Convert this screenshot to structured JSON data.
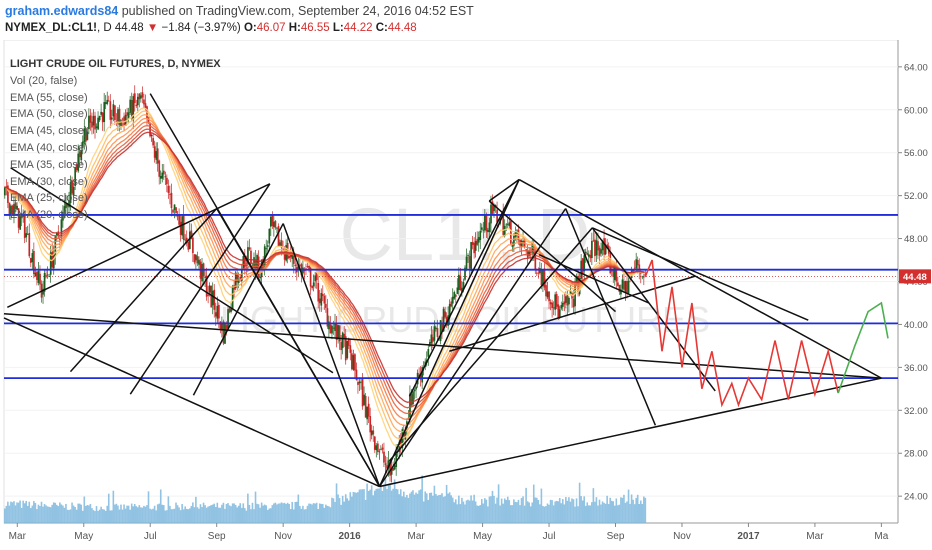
{
  "header": {
    "author": "graham.edwards84",
    "published_text": " published on TradingView.com, September 24, 2016 04:52 EST",
    "symbol": "NYMEX_DL:CL1!",
    "interval": ", D ",
    "last": "44.48",
    "change_arrow": "▼",
    "change": "−1.84 (−3.97%)",
    "open_label": "O:",
    "open": "46.07",
    "high_label": "H:",
    "high": "46.55",
    "low_label": "L:",
    "low": "44.22",
    "close_label": "C:",
    "close": "44.48"
  },
  "indicators": {
    "title": "LIGHT CRUDE OIL FUTURES, D, NYMEX",
    "items": [
      "Vol (20, false)",
      "EMA (55, close)",
      "EMA (50, close)",
      "EMA (45, close)",
      "EMA (40, close)",
      "EMA (35, close)",
      "EMA (30, close)",
      "EMA (25, close)",
      "EMA (20, close)"
    ]
  },
  "watermark": {
    "symbol": "CL1!, D",
    "name": "LIGHT CRUDE OIL FUTURES"
  },
  "price_tag": {
    "value": "44.48",
    "color": "#d32f2f"
  },
  "colors": {
    "hline": "#1f2ddb",
    "trendline": "#111111",
    "projection_red": "#e53935",
    "projection_green": "#4caf50",
    "candle_up": "#1b5e20",
    "candle_down": "#c62828",
    "volume": "#7fb8dd",
    "ema_hot": "#c62828",
    "ema_cool": "#ffcc66"
  },
  "chart_data": {
    "type": "candlestick",
    "title": "LIGHT CRUDE OIL FUTURES, D, NYMEX",
    "y_axis": {
      "ticks": [
        24.0,
        28.0,
        32.0,
        36.0,
        40.0,
        44.0,
        48.0,
        52.0,
        56.0,
        60.0,
        64.0
      ],
      "tick_labels": [
        "24.00",
        "28.00",
        "32.00",
        "36.00",
        "40.00",
        "44.00",
        "48.00",
        "52.00",
        "56.00",
        "60.00",
        "64.00"
      ],
      "range": [
        21.5,
        66.5
      ]
    },
    "x_axis": {
      "labels": [
        "Mar",
        "May",
        "Jul",
        "Sep",
        "Nov",
        "2016",
        "Mar",
        "May",
        "Jul",
        "Sep",
        "Nov",
        "2017",
        "Mar",
        "Ma"
      ],
      "label_months": [
        0,
        2,
        4,
        6,
        8,
        10,
        12,
        14,
        16,
        18,
        20,
        22,
        24,
        26
      ],
      "range_months": [
        -0.4,
        26.5
      ]
    },
    "price_path": [
      [
        -0.4,
        52.0
      ],
      [
        0.2,
        49.0
      ],
      [
        0.7,
        43.0
      ],
      [
        1.1,
        47.0
      ],
      [
        1.6,
        53.0
      ],
      [
        2.0,
        58.0
      ],
      [
        2.6,
        60.0
      ],
      [
        3.1,
        59.0
      ],
      [
        3.7,
        61.0
      ],
      [
        4.0,
        57.0
      ],
      [
        4.3,
        54.0
      ],
      [
        4.8,
        50.0
      ],
      [
        5.2,
        47.5
      ],
      [
        5.6,
        44.0
      ],
      [
        6.0,
        41.0
      ],
      [
        6.2,
        39.0
      ],
      [
        6.5,
        44.0
      ],
      [
        6.9,
        46.5
      ],
      [
        7.3,
        45.0
      ],
      [
        7.6,
        49.0
      ],
      [
        8.0,
        47.0
      ],
      [
        8.4,
        45.5
      ],
      [
        8.9,
        44.0
      ],
      [
        9.4,
        40.0
      ],
      [
        10.0,
        37.0
      ],
      [
        10.3,
        34.0
      ],
      [
        10.6,
        30.5
      ],
      [
        10.9,
        28.0
      ],
      [
        11.2,
        26.0
      ],
      [
        11.5,
        29.0
      ],
      [
        11.9,
        34.0
      ],
      [
        12.4,
        38.0
      ],
      [
        12.9,
        41.0
      ],
      [
        13.3,
        44.0
      ],
      [
        13.8,
        48.0
      ],
      [
        14.3,
        50.5
      ],
      [
        14.7,
        49.0
      ],
      [
        15.1,
        47.5
      ],
      [
        15.5,
        46.5
      ],
      [
        15.9,
        43.5
      ],
      [
        16.3,
        41.0
      ],
      [
        16.7,
        42.5
      ],
      [
        17.1,
        46.5
      ],
      [
        17.5,
        47.5
      ],
      [
        17.9,
        45.0
      ],
      [
        18.2,
        43.0
      ],
      [
        18.6,
        45.5
      ],
      [
        18.9,
        44.48
      ]
    ],
    "horizontal_levels": [
      50.2,
      45.1,
      40.1,
      35.0
    ],
    "ema_periods": [
      20,
      25,
      30,
      35,
      40,
      45,
      50,
      55
    ],
    "trendlines": [
      [
        [
          -0.4,
          40.6
        ],
        [
          10.9,
          24.9
        ]
      ],
      [
        [
          -0.4,
          41.0
        ],
        [
          26.0,
          35.0
        ]
      ],
      [
        [
          10.9,
          24.9
        ],
        [
          26.0,
          35.0
        ]
      ],
      [
        [
          -0.2,
          54.6
        ],
        [
          9.5,
          35.5
        ]
      ],
      [
        [
          -0.3,
          41.6
        ],
        [
          7.6,
          53.1
        ]
      ],
      [
        [
          1.6,
          35.6
        ],
        [
          6.0,
          50.8
        ]
      ],
      [
        [
          3.4,
          33.5
        ],
        [
          7.6,
          53.1
        ]
      ],
      [
        [
          4.0,
          61.5
        ],
        [
          10.9,
          24.9
        ]
      ],
      [
        [
          6.0,
          50.8
        ],
        [
          10.9,
          24.9
        ]
      ],
      [
        [
          5.3,
          33.4
        ],
        [
          8.0,
          49.4
        ]
      ],
      [
        [
          8.0,
          49.4
        ],
        [
          10.9,
          24.9
        ]
      ],
      [
        [
          10.9,
          24.9
        ],
        [
          15.1,
          53.5
        ]
      ],
      [
        [
          10.9,
          24.9
        ],
        [
          16.5,
          50.8
        ]
      ],
      [
        [
          15.1,
          53.5
        ],
        [
          26.0,
          35.0
        ]
      ],
      [
        [
          14.2,
          51.5
        ],
        [
          15.1,
          53.5
        ]
      ],
      [
        [
          16.5,
          50.8
        ],
        [
          19.2,
          30.6
        ]
      ],
      [
        [
          11.8,
          33.3
        ],
        [
          15.1,
          53.5
        ]
      ],
      [
        [
          14.2,
          51.5
        ],
        [
          18.0,
          41.2
        ]
      ],
      [
        [
          11.2,
          27.3
        ],
        [
          17.3,
          49.0
        ]
      ],
      [
        [
          17.3,
          49.0
        ],
        [
          23.8,
          40.4
        ]
      ],
      [
        [
          15.7,
          46.5
        ],
        [
          19.0,
          42.0
        ]
      ],
      [
        [
          17.3,
          49.0
        ],
        [
          21.0,
          33.8
        ]
      ],
      [
        [
          13.0,
          37.5
        ],
        [
          20.4,
          44.5
        ]
      ]
    ],
    "projection_red": [
      [
        18.9,
        44.48
      ],
      [
        19.1,
        46.0
      ],
      [
        19.4,
        37.5
      ],
      [
        19.7,
        43.5
      ],
      [
        20.0,
        36.0
      ],
      [
        20.3,
        42.0
      ],
      [
        20.6,
        34.0
      ],
      [
        20.9,
        37.5
      ],
      [
        21.2,
        32.5
      ],
      [
        21.5,
        34.5
      ],
      [
        21.7,
        32.5
      ],
      [
        22.0,
        35.0
      ],
      [
        22.4,
        33.0
      ],
      [
        22.8,
        38.5
      ],
      [
        23.2,
        33.0
      ],
      [
        23.6,
        38.5
      ],
      [
        24.0,
        33.5
      ],
      [
        24.4,
        37.5
      ],
      [
        24.7,
        33.6
      ]
    ],
    "projection_green": [
      [
        24.7,
        33.6
      ],
      [
        25.2,
        38.0
      ],
      [
        25.6,
        41.2
      ],
      [
        26.0,
        42.0
      ],
      [
        26.2,
        38.7
      ]
    ],
    "volume_profile": [
      [
        -0.4,
        0.35
      ],
      [
        1.5,
        0.3
      ],
      [
        3.0,
        0.28
      ],
      [
        5.0,
        0.3
      ],
      [
        7.0,
        0.3
      ],
      [
        9.0,
        0.32
      ],
      [
        10.5,
        0.55
      ],
      [
        11.2,
        0.7
      ],
      [
        12.0,
        0.5
      ],
      [
        14.0,
        0.4
      ],
      [
        16.0,
        0.38
      ],
      [
        18.0,
        0.42
      ],
      [
        18.9,
        0.42
      ]
    ],
    "last_price": 44.48
  }
}
